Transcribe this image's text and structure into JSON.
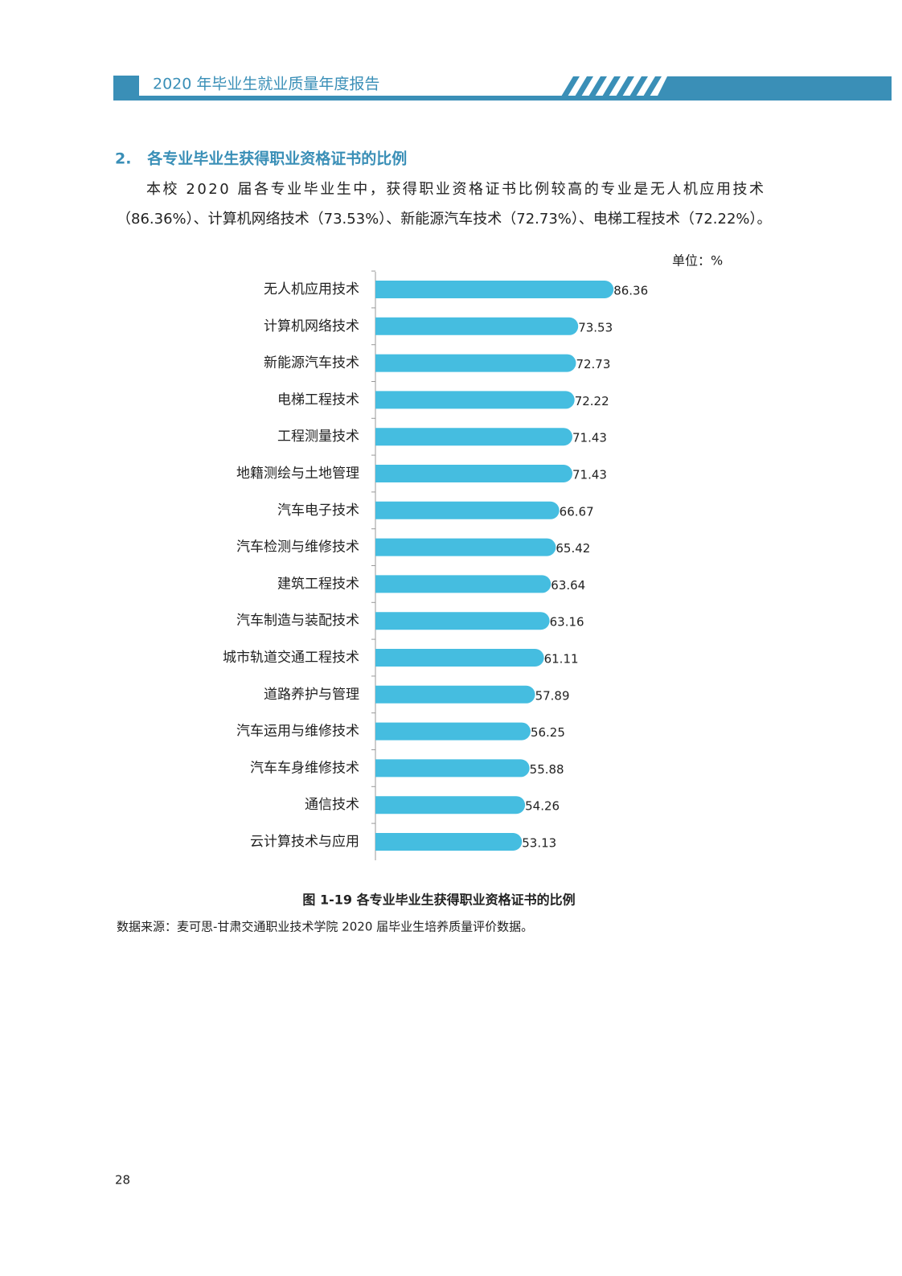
{
  "header": {
    "title": "2020 年毕业生就业质量年度报告"
  },
  "section": {
    "heading": "2.   各专业毕业生获得职业资格证书的比例",
    "paragraph": [
      "本校 2020 届各专业毕业生中，获得职业资格证书比例较高的专业是无人机应用技术",
      "（86.36%）、计算机网络技术（73.53%）、新能源汽车技术（72.73%）、电梯工程技术（72.22%）。"
    ]
  },
  "chart_data": {
    "type": "bar",
    "orientation": "horizontal",
    "unit_label": "单位：%",
    "color": "#45bde0",
    "categories": [
      "无人机应用技术",
      "计算机网络技术",
      "新能源汽车技术",
      "电梯工程技术",
      "工程测量技术",
      "地籍测绘与土地管理",
      "汽车电子技术",
      "汽车检测与维修技术",
      "建筑工程技术",
      "汽车制造与装配技术",
      "城市轨道交通工程技术",
      "道路养护与管理",
      "汽车运用与维修技术",
      "汽车车身维修技术",
      "通信技术",
      "云计算技术与应用"
    ],
    "values": [
      86.36,
      73.53,
      72.73,
      72.22,
      71.43,
      71.43,
      66.67,
      65.42,
      63.64,
      63.16,
      61.11,
      57.89,
      56.25,
      55.88,
      54.26,
      53.13
    ]
  },
  "caption": "图 1-19  各专业毕业生获得职业资格证书的比例",
  "source": "数据来源：麦可思-甘肃交通职业技术学院 2020 届毕业生培养质量评价数据。",
  "page_number": "28"
}
